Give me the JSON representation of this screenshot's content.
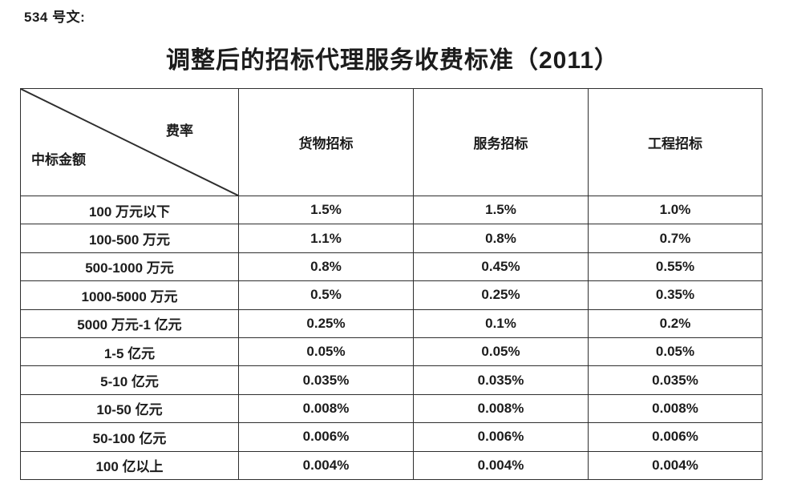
{
  "doc_label": "534 号文:",
  "title": "调整后的招标代理服务收费标准（2011）",
  "table": {
    "corner_top_right": "费率",
    "corner_bottom_left": "中标金额",
    "columns": [
      "货物招标",
      "服务招标",
      "工程招标"
    ],
    "rows": [
      {
        "label": "100 万元以下",
        "values": [
          "1.5%",
          "1.5%",
          "1.0%"
        ]
      },
      {
        "label": "100-500 万元",
        "values": [
          "1.1%",
          "0.8%",
          "0.7%"
        ]
      },
      {
        "label": "500-1000 万元",
        "values": [
          "0.8%",
          "0.45%",
          "0.55%"
        ]
      },
      {
        "label": "1000-5000 万元",
        "values": [
          "0.5%",
          "0.25%",
          "0.35%"
        ]
      },
      {
        "label": "5000 万元-1 亿元",
        "values": [
          "0.25%",
          "0.1%",
          "0.2%"
        ]
      },
      {
        "label": "1-5 亿元",
        "values": [
          "0.05%",
          "0.05%",
          "0.05%"
        ]
      },
      {
        "label": "5-10 亿元",
        "values": [
          "0.035%",
          "0.035%",
          "0.035%"
        ]
      },
      {
        "label": "10-50 亿元",
        "values": [
          "0.008%",
          "0.008%",
          "0.008%"
        ]
      },
      {
        "label": "50-100 亿元",
        "values": [
          "0.006%",
          "0.006%",
          "0.006%"
        ]
      },
      {
        "label": "100 亿以上",
        "values": [
          "0.004%",
          "0.004%",
          "0.004%"
        ]
      }
    ]
  },
  "colors": {
    "border": "#2e2e2e",
    "text": "#1c1c1c",
    "background": "#ffffff"
  }
}
